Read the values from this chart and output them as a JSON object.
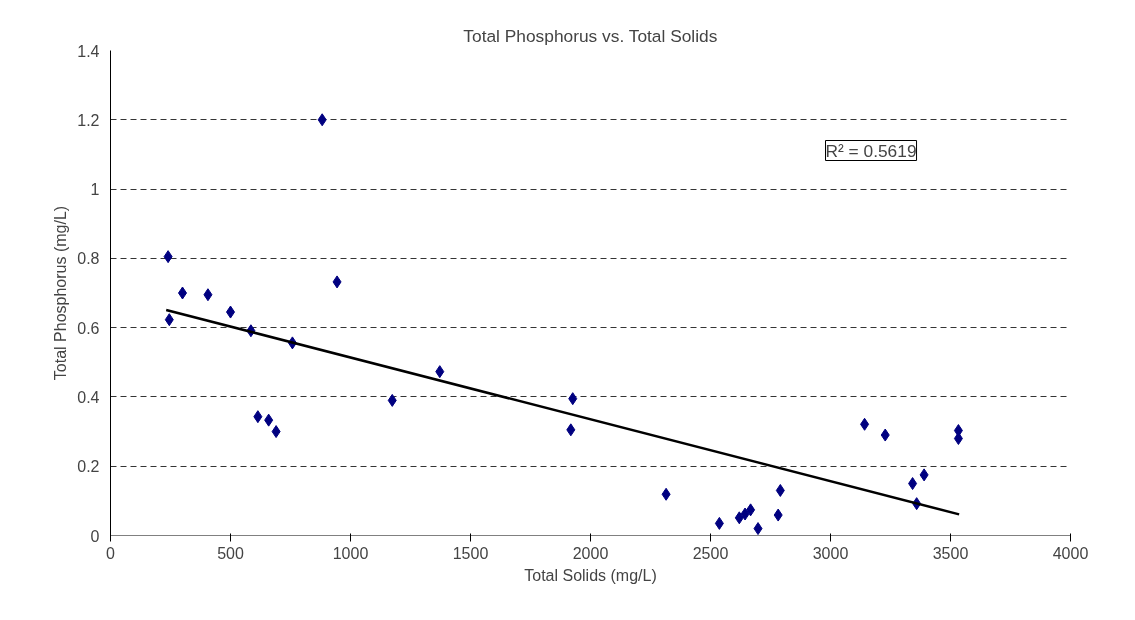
{
  "chart_data": {
    "type": "scatter",
    "title": "Total Phosphorus vs. Total Solids",
    "xlabel": "Total Solids (mg/L)",
    "ylabel": "Total Phosphorus (mg/L)",
    "x": [
      240,
      245,
      300,
      406,
      500,
      585,
      614,
      659,
      690,
      758,
      882,
      944,
      1174,
      1372,
      1926,
      1918,
      2315,
      2537,
      2620,
      2644,
      2667,
      2698,
      2791,
      2782,
      3142,
      3228,
      3533,
      3533,
      3342,
      3390,
      3359
    ],
    "series": [
      {
        "type": "scatter",
        "color": "#000080",
        "marker": "diamond",
        "values": [
          0.805,
          0.623,
          0.7,
          0.695,
          0.645,
          0.591,
          0.343,
          0.333,
          0.3,
          0.556,
          1.2,
          0.732,
          0.39,
          0.473,
          0.395,
          0.305,
          0.119,
          0.035,
          0.051,
          0.062,
          0.074,
          0.02,
          0.13,
          0.059,
          0.321,
          0.29,
          0.303,
          0.28,
          0.15,
          0.175,
          0.092
        ]
      },
      {
        "type": "line",
        "color": "#000000",
        "line_style": "solid",
        "marker": "none",
        "x": [
          232,
          3536
        ],
        "values": [
          0.651,
          0.061
        ]
      }
    ],
    "xlim": [
      0,
      4000
    ],
    "ylim": [
      0,
      1.4
    ],
    "xticks": [
      0,
      500,
      1000,
      1500,
      2000,
      2500,
      3000,
      3500,
      4000
    ],
    "yticks": [
      0,
      0.2,
      0.4,
      0.6,
      0.8,
      1,
      1.2,
      1.4
    ],
    "grid": "y",
    "annotations": [
      "R² = 0.5619"
    ]
  }
}
